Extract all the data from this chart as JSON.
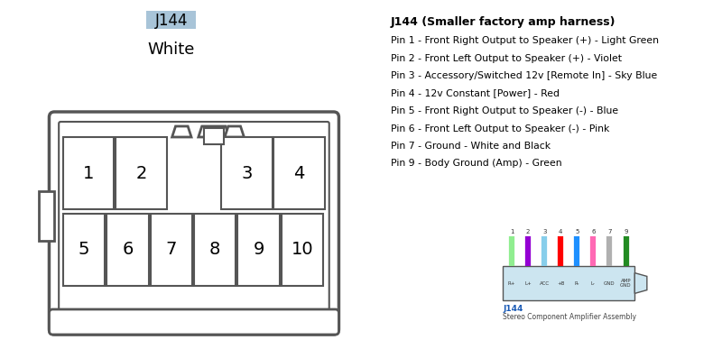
{
  "bg_color": "#ffffff",
  "title_text": "J144 (Smaller factory amp harness)",
  "pin_lines": [
    "Pin 1 - Front Right Output to Speaker (+) - Light Green",
    "Pin 2 - Front Left Output to Speaker (+) - Violet",
    "Pin 3 - Accessory/Switched 12v [Remote In] - Sky Blue",
    "Pin 4 - 12v Constant [Power] - Red",
    "Pin 5 - Front Right Output to Speaker (-) - Blue",
    "Pin 6 - Front Left Output to Speaker (-) - Pink",
    "Pin 7 - Ground - White and Black",
    "Pin 9 - Body Ground (Amp) - Green"
  ],
  "j144_label": "J144",
  "j144_label_bg": "#a8c4d8",
  "white_label": "White",
  "wire_colors": [
    "#90ee90",
    "#9400d3",
    "#87ceeb",
    "#ff0000",
    "#1e90ff",
    "#ff69b4",
    "#b0b0b0",
    "#228b22"
  ],
  "wire_labels": [
    "R+",
    "L+",
    "ACC",
    "+B",
    "R-",
    "L-",
    "GND",
    "AMP\nGND"
  ],
  "wire_pin_labels": [
    "1",
    "2",
    "3",
    "4",
    "5",
    "6",
    "7",
    "9"
  ],
  "connector_fill": "#cce5f0",
  "connector_outline": "#555555",
  "sub_label": "J144",
  "sub_label2": "Stereo Component Amplifier Assembly",
  "top_pins": [
    "1",
    "2",
    "3",
    "4"
  ],
  "bot_pins": [
    "5",
    "6",
    "7",
    "8",
    "9",
    "10"
  ]
}
